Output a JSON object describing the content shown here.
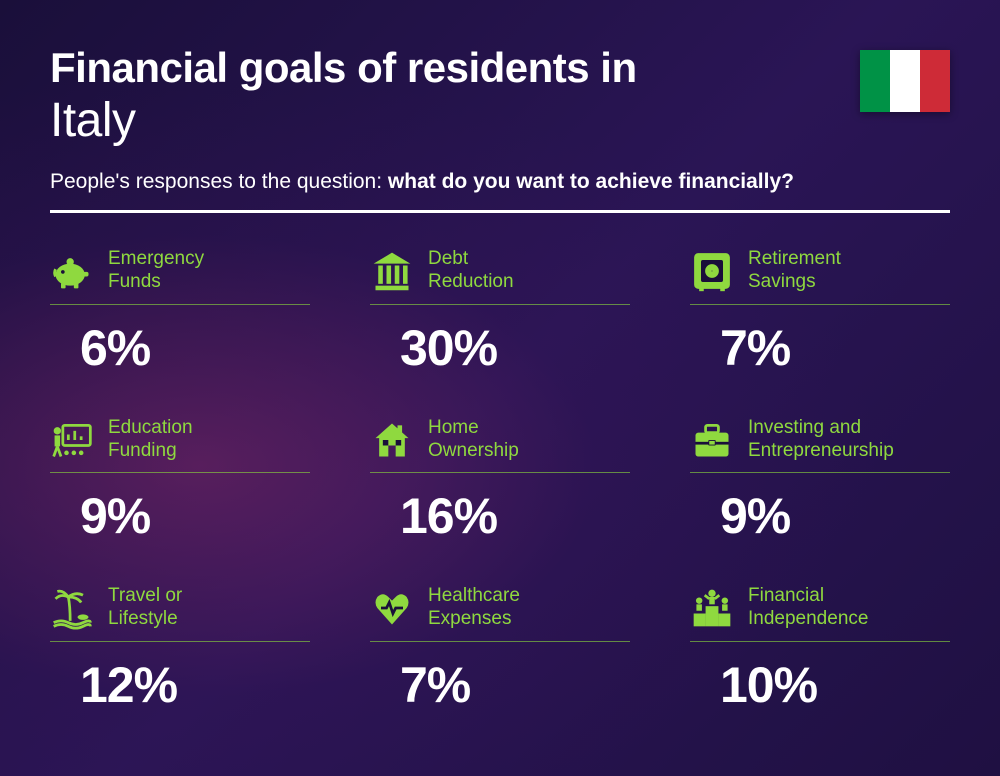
{
  "title": "Financial goals of residents in",
  "country": "Italy",
  "subtitle_prefix": "People's responses to the question: ",
  "subtitle_bold": "what do you want to achieve financially?",
  "flag_colors": [
    "#009246",
    "#ffffff",
    "#ce2b37"
  ],
  "accent_color": "#8fd93f",
  "items": [
    {
      "label": "Emergency Funds",
      "value": "6%",
      "icon": "piggy-bank"
    },
    {
      "label": "Debt Reduction",
      "value": "30%",
      "icon": "bank"
    },
    {
      "label": "Retirement Savings",
      "value": "7%",
      "icon": "safe"
    },
    {
      "label": "Education Funding",
      "value": "9%",
      "icon": "presentation"
    },
    {
      "label": "Home Ownership",
      "value": "16%",
      "icon": "house"
    },
    {
      "label": "Investing and Entrepreneurship",
      "value": "9%",
      "icon": "briefcase"
    },
    {
      "label": "Travel or Lifestyle",
      "value": "12%",
      "icon": "palm-beach"
    },
    {
      "label": "Healthcare Expenses",
      "value": "7%",
      "icon": "heart-pulse"
    },
    {
      "label": "Financial Independence",
      "value": "10%",
      "icon": "podium"
    }
  ]
}
